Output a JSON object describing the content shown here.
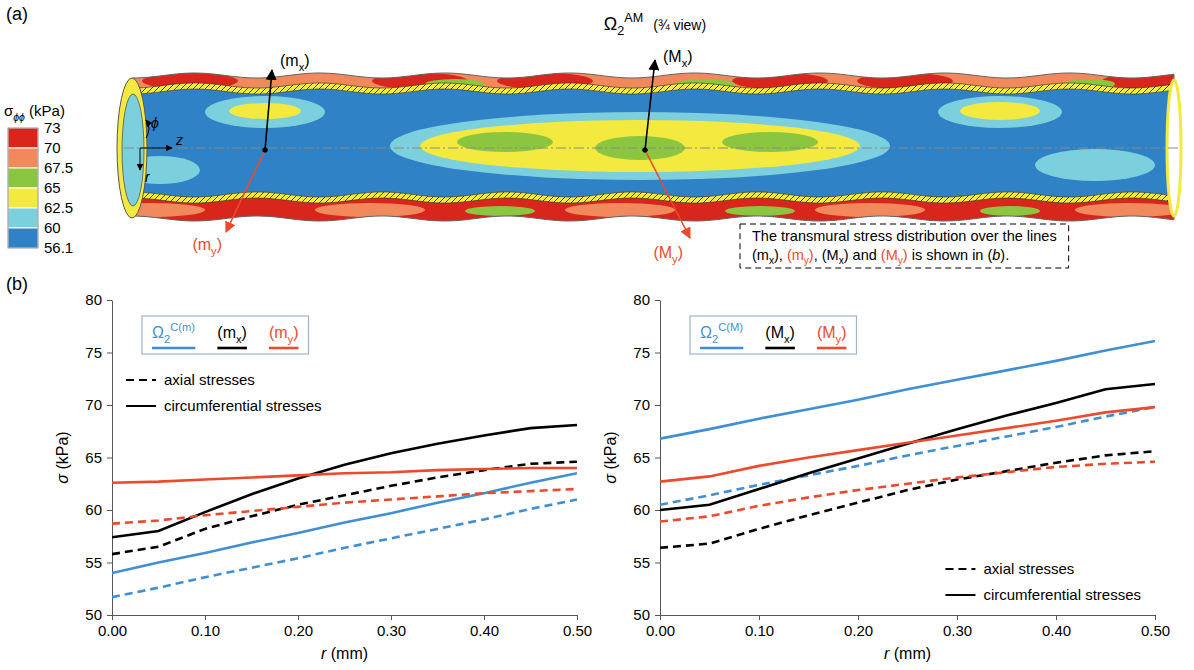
{
  "chart_data": [
    {
      "type": "contour",
      "panel": "(a)",
      "title": [
        {
          "text": "Ω"
        },
        {
          "text": "2",
          "sub": true
        },
        {
          "text": "AM",
          "sup": true
        }
      ],
      "subtitle": "(¾ view)",
      "colorbar": {
        "title": [
          {
            "text": "σ"
          },
          {
            "text": "ϕϕ",
            "sub": true,
            "italic": true
          },
          {
            "text": " (kPa)"
          }
        ],
        "range": [
          56.1,
          73
        ],
        "ticks": [
          73,
          70,
          67.5,
          65,
          62.5,
          60,
          56.1
        ],
        "colors": [
          "#d8261c",
          "#f2895c",
          "#8cc641",
          "#f4e93e",
          "#7ccfdc",
          "#2f82c6"
        ]
      },
      "axis_symbols": [
        "ϕ",
        "z",
        "r"
      ],
      "annotations": [
        {
          "text": [
            {
              "text": "(m"
            },
            {
              "text": "x",
              "sub": true
            },
            {
              "text": ")"
            }
          ],
          "color": "#000000"
        },
        {
          "text": [
            {
              "text": "(m"
            },
            {
              "text": "y",
              "sub": true
            },
            {
              "text": ")"
            }
          ],
          "color": "#ec4a2c"
        },
        {
          "text": [
            {
              "text": "(M"
            },
            {
              "text": "x",
              "sub": true
            },
            {
              "text": ")"
            }
          ],
          "color": "#000000"
        },
        {
          "text": [
            {
              "text": "(M"
            },
            {
              "text": "y",
              "sub": true
            },
            {
              "text": ")"
            }
          ],
          "color": "#ec4a2c"
        }
      ],
      "note": [
        [
          {
            "text": "The transmural stress distribution over the lines"
          }
        ],
        [
          {
            "text": "(m"
          },
          {
            "text": "x",
            "sub": true
          },
          {
            "text": "), "
          },
          {
            "text": "(m",
            "color": "#ec4a2c"
          },
          {
            "text": "y",
            "sub": true,
            "color": "#ec4a2c"
          },
          {
            "text": ")",
            "color": "#ec4a2c"
          },
          {
            "text": ", (M"
          },
          {
            "text": "x",
            "sub": true
          },
          {
            "text": ") and "
          },
          {
            "text": "(M",
            "color": "#ec4a2c"
          },
          {
            "text": "y",
            "sub": true,
            "color": "#ec4a2c"
          },
          {
            "text": ")",
            "color": "#ec4a2c"
          },
          {
            "text": " is shown in ("
          },
          {
            "text": "b",
            "italic": true
          },
          {
            "text": ")."
          }
        ]
      ]
    },
    {
      "type": "line",
      "panel": "(b)",
      "xlabel": [
        {
          "text": "r",
          "italic": true
        },
        {
          "text": " (mm)"
        }
      ],
      "ylabel": [
        {
          "text": "σ",
          "italic": true
        },
        {
          "text": " (kPa)"
        }
      ],
      "x": [
        0,
        0.05,
        0.1,
        0.15,
        0.2,
        0.25,
        0.3,
        0.35,
        0.4,
        0.45,
        0.5
      ],
      "xlim": [
        0,
        0.5
      ],
      "xticks": [
        {
          "value": 0,
          "label": "0.00"
        },
        {
          "value": 0.1,
          "label": "0.10"
        },
        {
          "value": 0.2,
          "label": "0.20"
        },
        {
          "value": 0.3,
          "label": "0.30"
        },
        {
          "value": 0.4,
          "label": "0.40"
        },
        {
          "value": 0.5,
          "label": "0.50"
        }
      ],
      "ylim": [
        50,
        80
      ],
      "yticks": [
        50,
        55,
        60,
        65,
        70,
        75,
        80
      ],
      "legend": "upper left",
      "legend_entries": [
        {
          "label": [
            {
              "text": "Ω"
            },
            {
              "text": "2",
              "sub": true
            },
            {
              "text": "C(m)",
              "sup": true
            }
          ],
          "color": "#3f8fd2"
        },
        {
          "label": [
            {
              "text": "(m"
            },
            {
              "text": "x",
              "sub": true
            },
            {
              "text": ")"
            }
          ],
          "color": "#000000"
        },
        {
          "label": [
            {
              "text": "(m"
            },
            {
              "text": "y",
              "sub": true
            },
            {
              "text": ")"
            }
          ],
          "color": "#ec4a2c"
        }
      ],
      "style_entries": [
        {
          "label": "axial stresses",
          "line_style": "dashed"
        },
        {
          "label": "circumferential stresses",
          "line_style": "solid"
        }
      ],
      "series": [
        {
          "color": "#3f8fd2",
          "line_style": "solid",
          "values": [
            54.0,
            55.0,
            55.9,
            56.9,
            57.8,
            58.8,
            59.7,
            60.7,
            61.6,
            62.6,
            63.5
          ]
        },
        {
          "color": "#3f8fd2",
          "line_style": "dashed",
          "values": [
            51.7,
            52.6,
            53.6,
            54.5,
            55.4,
            56.4,
            57.3,
            58.2,
            59.1,
            60.1,
            61.0
          ]
        },
        {
          "color": "#000000",
          "line_style": "solid",
          "values": [
            57.4,
            58.0,
            59.8,
            61.5,
            63.0,
            64.3,
            65.4,
            66.3,
            67.1,
            67.8,
            68.1
          ]
        },
        {
          "color": "#000000",
          "line_style": "dashed",
          "values": [
            55.8,
            56.5,
            58.2,
            59.4,
            60.5,
            61.4,
            62.3,
            63.1,
            63.8,
            64.4,
            64.6
          ]
        },
        {
          "color": "#ec4a2c",
          "line_style": "solid",
          "values": [
            62.6,
            62.7,
            62.9,
            63.1,
            63.3,
            63.5,
            63.6,
            63.8,
            63.9,
            64.0,
            64.0
          ]
        },
        {
          "color": "#ec4a2c",
          "line_style": "dashed",
          "values": [
            58.7,
            59.0,
            59.5,
            59.9,
            60.3,
            60.7,
            61.0,
            61.3,
            61.6,
            61.8,
            62.0
          ]
        }
      ]
    },
    {
      "type": "line",
      "xlabel": [
        {
          "text": "r",
          "italic": true
        },
        {
          "text": " (mm)"
        }
      ],
      "ylabel": [
        {
          "text": "σ",
          "italic": true
        },
        {
          "text": " (kPa)"
        }
      ],
      "x": [
        0,
        0.05,
        0.1,
        0.15,
        0.2,
        0.25,
        0.3,
        0.35,
        0.4,
        0.45,
        0.5
      ],
      "xlim": [
        0,
        0.5
      ],
      "xticks": [
        {
          "value": 0,
          "label": "0.00"
        },
        {
          "value": 0.1,
          "label": "0.10"
        },
        {
          "value": 0.2,
          "label": "0.20"
        },
        {
          "value": 0.3,
          "label": "0.30"
        },
        {
          "value": 0.4,
          "label": "0.40"
        },
        {
          "value": 0.5,
          "label": "0.50"
        }
      ],
      "ylim": [
        50,
        80
      ],
      "yticks": [
        50,
        55,
        60,
        65,
        70,
        75,
        80
      ],
      "legend": "upper left",
      "legend_entries": [
        {
          "label": [
            {
              "text": "Ω"
            },
            {
              "text": "2",
              "sub": true
            },
            {
              "text": "C(M)",
              "sup": true
            }
          ],
          "color": "#3f8fd2"
        },
        {
          "label": [
            {
              "text": "(M"
            },
            {
              "text": "x",
              "sub": true
            },
            {
              "text": ")"
            }
          ],
          "color": "#000000"
        },
        {
          "label": [
            {
              "text": "(M"
            },
            {
              "text": "y",
              "sub": true
            },
            {
              "text": ")"
            }
          ],
          "color": "#ec4a2c"
        }
      ],
      "style_entries": [
        {
          "label": "axial stresses",
          "line_style": "dashed"
        },
        {
          "label": "circumferential stresses",
          "line_style": "solid"
        }
      ],
      "series": [
        {
          "color": "#3f8fd2",
          "line_style": "solid",
          "values": [
            66.8,
            67.7,
            68.7,
            69.6,
            70.5,
            71.5,
            72.4,
            73.3,
            74.2,
            75.2,
            76.1
          ]
        },
        {
          "color": "#3f8fd2",
          "line_style": "dashed",
          "values": [
            60.5,
            61.4,
            62.4,
            63.3,
            64.2,
            65.2,
            66.1,
            67.0,
            67.9,
            68.9,
            69.8
          ]
        },
        {
          "color": "#000000",
          "line_style": "solid",
          "values": [
            60.0,
            60.5,
            62.0,
            63.5,
            64.9,
            66.3,
            67.7,
            69.0,
            70.2,
            71.5,
            72.0
          ]
        },
        {
          "color": "#000000",
          "line_style": "dashed",
          "values": [
            56.4,
            56.8,
            58.2,
            59.5,
            60.7,
            61.9,
            62.9,
            63.7,
            64.5,
            65.2,
            65.6
          ]
        },
        {
          "color": "#ec4a2c",
          "line_style": "solid",
          "values": [
            62.7,
            63.2,
            64.2,
            65.0,
            65.7,
            66.4,
            67.1,
            67.8,
            68.5,
            69.3,
            69.8
          ]
        },
        {
          "color": "#ec4a2c",
          "line_style": "dashed",
          "values": [
            58.9,
            59.4,
            60.4,
            61.2,
            61.9,
            62.5,
            63.1,
            63.6,
            64.1,
            64.4,
            64.6
          ]
        }
      ]
    }
  ]
}
